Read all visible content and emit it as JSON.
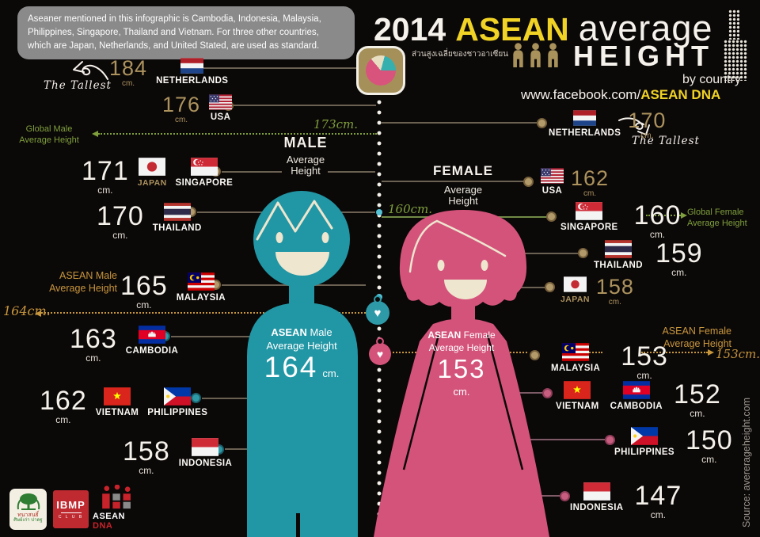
{
  "note": "Aseaner mentioned in this infographic is Cambodia, Indonesia, Malaysia, Philippines, Singapore, Thailand and Vietnam. For three other countries, which are Japan, Netherlands, and United Stated, are used as standard.",
  "title": {
    "year": "2014",
    "brand": "ASEAN",
    "average": "average",
    "height": "HEIGHT",
    "thai": "ส่วนสูงเฉลี่ยของชาวอาเซียน",
    "by_country": "by country",
    "url_prefix": "www.facebook.com/",
    "url_brand": "ASEAN DNA"
  },
  "units": {
    "cm": "cm."
  },
  "tallest_label": "The Tallest",
  "male": {
    "header": "MALE",
    "subheader1": "Average",
    "subheader2": "Height",
    "global_label1": "Global Male",
    "global_label2": "Average Height",
    "global_value": "173cm.",
    "asean_label1": "ASEAN Male",
    "asean_label2": "Average Height",
    "asean_value": "164cm.",
    "figure": {
      "bold": "ASEAN",
      "rest": "Male",
      "line2": "Average Height",
      "value": "164"
    },
    "rows": [
      {
        "value": "184",
        "countries": [
          {
            "name": "NETHERLANDS",
            "flag": "nl"
          }
        ]
      },
      {
        "value": "176",
        "countries": [
          {
            "name": "USA",
            "flag": "us"
          }
        ]
      },
      {
        "value": "171",
        "countries": [
          {
            "name": "JAPAN",
            "flag": "jp",
            "muted": true
          },
          {
            "name": "SINGAPORE",
            "flag": "sg"
          }
        ]
      },
      {
        "value": "170",
        "countries": [
          {
            "name": "THAILAND",
            "flag": "th"
          }
        ]
      },
      {
        "value": "165",
        "countries": [
          {
            "name": "MALAYSIA",
            "flag": "my"
          }
        ]
      },
      {
        "value": "163",
        "countries": [
          {
            "name": "CAMBODIA",
            "flag": "kh"
          }
        ]
      },
      {
        "value": "162",
        "countries": [
          {
            "name": "VIETNAM",
            "flag": "vn"
          },
          {
            "name": "PHILIPPINES",
            "flag": "ph"
          }
        ]
      },
      {
        "value": "158",
        "countries": [
          {
            "name": "INDONESIA",
            "flag": "id"
          }
        ]
      }
    ]
  },
  "female": {
    "header": "FEMALE",
    "subheader1": "Average",
    "subheader2": "Height",
    "global_label1": "Global Female",
    "global_label2": "Average Height",
    "global_value": "160cm.",
    "asean_label1": "ASEAN Female",
    "asean_label2": "Average Height",
    "asean_value": "153cm.",
    "figure": {
      "bold": "ASEAN",
      "rest": "Female",
      "line2": "Average Height",
      "value": "153"
    },
    "rows": [
      {
        "value": "170",
        "countries": [
          {
            "name": "NETHERLANDS",
            "flag": "nl"
          }
        ]
      },
      {
        "value": "162",
        "countries": [
          {
            "name": "USA",
            "flag": "us"
          }
        ]
      },
      {
        "value": "160",
        "countries": [
          {
            "name": "SINGAPORE",
            "flag": "sg"
          }
        ]
      },
      {
        "value": "159",
        "countries": [
          {
            "name": "THAILAND",
            "flag": "th"
          }
        ]
      },
      {
        "value": "158",
        "countries": [
          {
            "name": "JAPAN",
            "flag": "jp",
            "muted": true
          }
        ]
      },
      {
        "value": "153",
        "countries": [
          {
            "name": "MALAYSIA",
            "flag": "my"
          }
        ]
      },
      {
        "value": "152",
        "countries": [
          {
            "name": "VIETNAM",
            "flag": "vn"
          },
          {
            "name": "CAMBODIA",
            "flag": "kh"
          }
        ]
      },
      {
        "value": "150",
        "countries": [
          {
            "name": "PHILIPPINES",
            "flag": "ph"
          }
        ]
      },
      {
        "value": "147",
        "countries": [
          {
            "name": "INDONESIA",
            "flag": "id"
          }
        ]
      }
    ]
  },
  "logos": {
    "thai_line1": "ทนาสนธิ์",
    "thai_line2": "ศิษย์เก่า ปาดฐ",
    "ibmp": "IBMP",
    "ibmp_sub": "C L U B",
    "asean_dna_white": "ASEAN ",
    "asean_dna_red": "DNA"
  },
  "source": "Source: avererageheight.com",
  "chart_data": {
    "type": "bar",
    "title": "2014 ASEAN average HEIGHT by country",
    "unit": "cm",
    "categories": [
      "Netherlands",
      "USA",
      "Japan",
      "Singapore",
      "Thailand",
      "Malaysia",
      "Cambodia",
      "Vietnam",
      "Philippines",
      "Indonesia"
    ],
    "series": [
      {
        "name": "Male average height (cm)",
        "values": [
          184,
          176,
          171,
          171,
          170,
          165,
          163,
          162,
          162,
          158
        ]
      },
      {
        "name": "Female average height (cm)",
        "values": [
          170,
          162,
          158,
          160,
          159,
          153,
          152,
          152,
          150,
          147
        ]
      }
    ],
    "annotations": {
      "global_male_average": 173,
      "asean_male_average": 164,
      "global_female_average": 160,
      "asean_female_average": 153,
      "tallest_male": "Netherlands 184",
      "tallest_female": "Netherlands 170"
    },
    "legend_position": "none",
    "grid": false
  }
}
